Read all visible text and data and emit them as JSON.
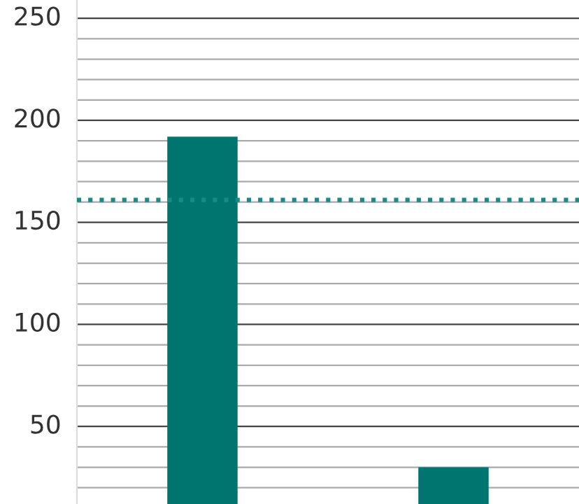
{
  "chart_data": {
    "type": "bar",
    "categories": [
      null,
      null
    ],
    "values": [
      192,
      30
    ],
    "color": "#00756f",
    "ylim": [
      12,
      259
    ],
    "yticks": [
      {
        "value": 20,
        "label": null
      },
      {
        "value": 30,
        "label": null
      },
      {
        "value": 40,
        "label": null
      },
      50,
      {
        "value": 60,
        "label": null
      },
      {
        "value": 70,
        "label": null
      },
      {
        "value": 80,
        "label": null
      },
      {
        "value": 90,
        "label": null
      },
      100,
      {
        "value": 110,
        "label": null
      },
      {
        "value": 120,
        "label": null
      },
      {
        "value": 130,
        "label": null
      },
      {
        "value": 140,
        "label": null
      },
      150,
      {
        "value": 160,
        "label": null
      },
      {
        "value": 170,
        "label": null
      },
      {
        "value": 180,
        "label": null
      },
      {
        "value": 190,
        "label": null
      },
      200,
      {
        "value": 210,
        "label": null
      },
      {
        "value": 220,
        "label": null
      },
      {
        "value": 230,
        "label": null
      },
      {
        "value": 240,
        "label": null
      },
      250
    ],
    "grid": "y",
    "ref_lines": [
      {
        "axis": "y",
        "value": 161,
        "color": "#1a8a84",
        "line_style": "dotted"
      }
    ]
  }
}
